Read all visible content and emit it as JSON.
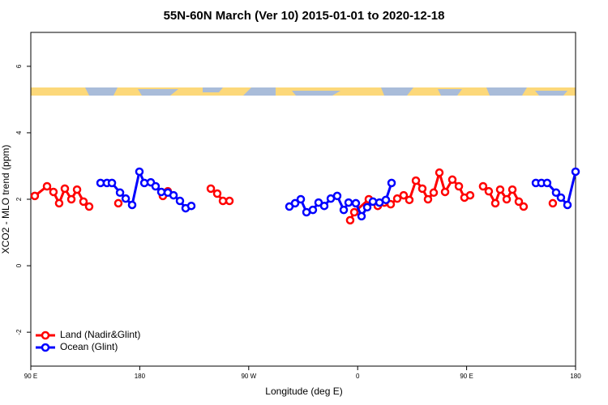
{
  "chart_data": {
    "type": "line",
    "title": "55N-60N March (Ver 10)   2015-01-01 to 2020-12-18",
    "xlabel": "Longitude (deg E)",
    "ylabel": "XCO2 - MLO trend (ppm)",
    "xlim": [
      90,
      540
    ],
    "xticks": [
      {
        "value": 90,
        "label": "90 E"
      },
      180,
      {
        "value": 270,
        "label": "90 W"
      },
      {
        "value": 360,
        "label": "0"
      },
      {
        "value": 450,
        "label": "90 E"
      },
      {
        "value": 540,
        "label": "180"
      }
    ],
    "ylim": [
      -3.02,
      7.02
    ],
    "yticks": [
      -2,
      0,
      2,
      4,
      6
    ],
    "legend": "bottom-left",
    "series": [
      {
        "name": "Land (Nadir&Glint)",
        "color": "#ff0000",
        "x": [
          93.3,
          103.4,
          108.7,
          113.4,
          118.1,
          123.5,
          128.2,
          133.5,
          138.2,
          null,
          162.3,
          null,
          199.1,
          203.2,
          null,
          238.7,
          244.0,
          248.7,
          254.1,
          null,
          353.8,
          357.2,
          369.2,
          376.6,
          382.0,
          387.3,
          392.7,
          398.0,
          402.7,
          408.1,
          413.4,
          418.1,
          422.8,
          427.5,
          432.2,
          438.2,
          443.6,
          448.2,
          452.9,
          null,
          463.6,
          468.3,
          473.7,
          477.7,
          483.1,
          487.8,
          493.1,
          497.1,
          null,
          521.2
        ],
        "values": [
          2.1,
          2.39,
          2.22,
          1.88,
          2.32,
          2.0,
          2.29,
          1.93,
          1.78,
          null,
          1.88,
          null,
          2.1,
          2.24,
          null,
          2.32,
          2.17,
          1.95,
          1.95,
          null,
          1.37,
          1.61,
          2.0,
          1.8,
          1.9,
          1.85,
          2.02,
          2.12,
          1.98,
          2.56,
          2.32,
          2.0,
          2.2,
          2.8,
          2.22,
          2.59,
          2.39,
          2.05,
          2.12,
          null,
          2.39,
          2.24,
          1.88,
          2.29,
          2.0,
          2.29,
          1.93,
          1.78,
          null,
          1.88
        ]
      },
      {
        "name": "Ocean (Glint)",
        "color": "#0000ff",
        "x": [
          147.6,
          152.9,
          157.0,
          163.7,
          168.4,
          173.7,
          179.7,
          183.8,
          189.1,
          193.1,
          197.8,
          203.2,
          207.9,
          213.2,
          217.9,
          222.6,
          null,
          303.6,
          308.3,
          313.0,
          317.7,
          323.0,
          327.7,
          332.4,
          337.8,
          343.1,
          348.5,
          352.5,
          358.5,
          363.2,
          367.9,
          372.6,
          378.0,
          383.3,
          388.0,
          null,
          507.2,
          511.8,
          516.5,
          523.9,
          527.9,
          533.3,
          540
        ],
        "values": [
          2.49,
          2.49,
          2.49,
          2.2,
          2.02,
          1.83,
          2.83,
          2.49,
          2.51,
          2.39,
          2.22,
          2.2,
          2.12,
          1.95,
          1.73,
          1.8,
          null,
          1.78,
          1.88,
          2.0,
          1.61,
          1.68,
          1.9,
          1.8,
          2.02,
          2.1,
          1.68,
          1.9,
          1.88,
          1.49,
          1.76,
          1.93,
          1.9,
          1.98,
          2.49,
          null,
          2.49,
          2.49,
          2.49,
          2.2,
          2.05,
          1.83,
          2.83
        ]
      }
    ]
  }
}
